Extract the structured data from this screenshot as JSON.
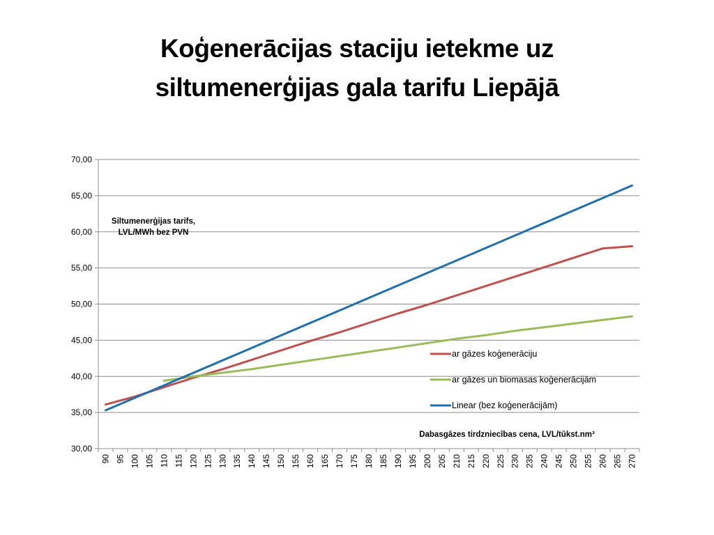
{
  "slide": {
    "title_line1": "Koģenerācijas staciju ietekme uz",
    "title_line2": "siltumenerģijas gala tarifu Liepājā"
  },
  "chart_data": {
    "type": "line",
    "title": "",
    "ylabel_line1": "Siltumenerģijas tarifs,",
    "ylabel_line2": "LVL/MWh bez PVN",
    "xlabel": "Dabasgāzes tirdzniecības cena, LVL/tūkst.nm³",
    "ylim": [
      30,
      70
    ],
    "yticks": [
      30,
      35,
      40,
      45,
      50,
      55,
      60,
      65,
      70
    ],
    "ytick_labels": [
      "30,00",
      "35,00",
      "40,00",
      "45,00",
      "50,00",
      "55,00",
      "60,00",
      "65,00",
      "70,00"
    ],
    "x": [
      90,
      95,
      100,
      105,
      110,
      115,
      120,
      125,
      130,
      135,
      140,
      145,
      150,
      155,
      160,
      165,
      170,
      175,
      180,
      185,
      190,
      195,
      200,
      205,
      210,
      215,
      220,
      225,
      230,
      235,
      240,
      245,
      250,
      255,
      260,
      265,
      270
    ],
    "grid": true,
    "legend_position": "right",
    "series": [
      {
        "name": "ar gāzes koģenerāciju",
        "color": "#c0504d",
        "x": [
          90,
          100,
          110,
          120,
          130,
          140,
          150,
          160,
          170,
          180,
          190,
          200,
          210,
          220,
          230,
          240,
          250,
          260,
          270
        ],
        "values": [
          36.1,
          37.2,
          38.5,
          39.8,
          41.0,
          42.3,
          43.6,
          44.9,
          46.1,
          47.4,
          48.7,
          49.9,
          51.2,
          52.5,
          53.8,
          55.1,
          56.4,
          57.7,
          58.0
        ]
      },
      {
        "name": "ar gāzes un biomasas koģenerācijām",
        "color": "#9bbb59",
        "x": [
          110,
          120,
          130,
          140,
          150,
          160,
          170,
          180,
          190,
          200,
          210,
          220,
          230,
          240,
          250,
          260,
          270
        ],
        "values": [
          39.4,
          40.0,
          40.5,
          41.0,
          41.6,
          42.2,
          42.8,
          43.4,
          44.0,
          44.6,
          45.2,
          45.7,
          46.3,
          46.8,
          47.3,
          47.8,
          48.3
        ]
      },
      {
        "name": "Linear (bez koģenerācijām)",
        "color": "#1f6fae",
        "x": [
          90,
          270
        ],
        "values": [
          35.3,
          66.4
        ]
      }
    ]
  }
}
